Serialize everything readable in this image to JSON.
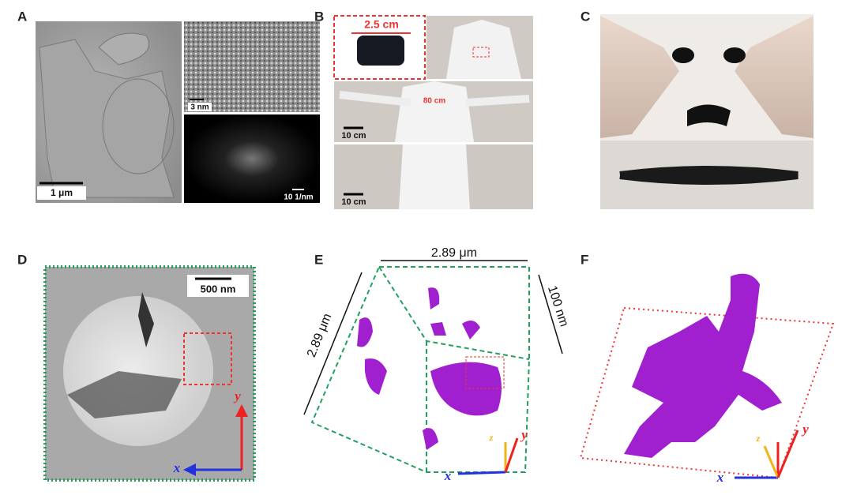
{
  "panels": [
    {
      "label": "A",
      "scale_bars": [
        "1 μm",
        "3 nm",
        "10 1/nm"
      ]
    },
    {
      "label": "B",
      "annotations": [
        "2.5 cm",
        "80 cm",
        "10 cm",
        "10 cm"
      ]
    },
    {
      "label": "C"
    },
    {
      "label": "D",
      "scale_bar": "500 nm",
      "axes": [
        "x",
        "y"
      ]
    },
    {
      "label": "E",
      "dimensions": [
        "2.89 μm",
        "2.89 μm",
        "100 nm"
      ],
      "axes": [
        "x",
        "y",
        "z"
      ]
    },
    {
      "label": "F",
      "axes": [
        "x",
        "y",
        "z"
      ]
    }
  ]
}
